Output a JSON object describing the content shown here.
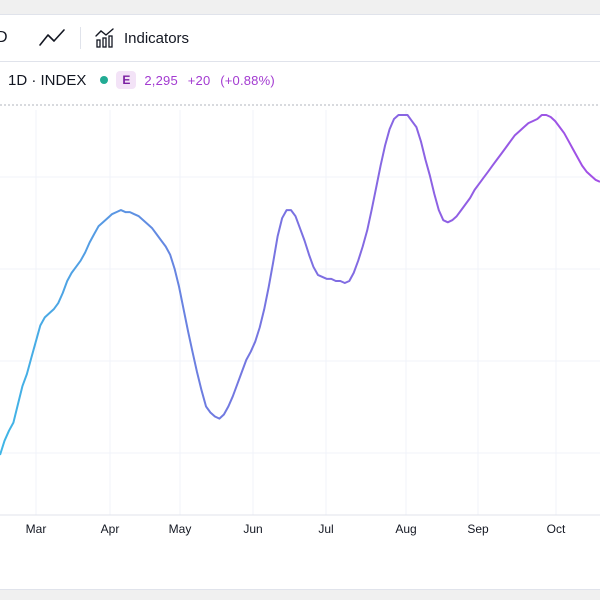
{
  "toolbar": {
    "partial_label": "D",
    "indicators_label": "Indicators",
    "icons": [
      "line-chart-icon",
      "indicators-icon"
    ]
  },
  "legend": {
    "symbol": "1D · INDEX",
    "market_status": "E",
    "value": "2,295",
    "change": "+20",
    "change_pct": "(+0.88%)",
    "colors": {
      "dot": "#22ab94",
      "value": "#a33bd1"
    }
  },
  "chart_data": {
    "type": "line",
    "title": "",
    "xlabel": "",
    "ylabel": "",
    "x_ticks": [
      "Mar",
      "Apr",
      "May",
      "Jun",
      "Jul",
      "Aug",
      "Sep",
      "Oct"
    ],
    "grid": true,
    "line_gradient": [
      "#3fb6e6",
      "#6f7be0",
      "#a34fe6"
    ],
    "series": [
      {
        "values": [
          380,
          387,
          392,
          396,
          405,
          414,
          420,
          428,
          436,
          444,
          448,
          450,
          452,
          455,
          460,
          466,
          470,
          473,
          476,
          480,
          485,
          489,
          493,
          495,
          497,
          499,
          500,
          501,
          500,
          500,
          499,
          498,
          496,
          494,
          492,
          489,
          486,
          483,
          479,
          472,
          463,
          452,
          441,
          431,
          421,
          412,
          404,
          401,
          399,
          398,
          400,
          404,
          409,
          415,
          421,
          427,
          431,
          436,
          443,
          452,
          463,
          475,
          488,
          497,
          501,
          501,
          498,
          492,
          486,
          479,
          473,
          469,
          468,
          467,
          467,
          466,
          466,
          465,
          466,
          470,
          476,
          483,
          491,
          501,
          512,
          523,
          533,
          541,
          546,
          548,
          548,
          548,
          545,
          542,
          535,
          526,
          518,
          509,
          501,
          496,
          495,
          496,
          498,
          501,
          504,
          507,
          511,
          514,
          517,
          520,
          523,
          526,
          529,
          532,
          535,
          538,
          540,
          542,
          544,
          545,
          546,
          548,
          548,
          547,
          545,
          542,
          539,
          535,
          531,
          527,
          523,
          520,
          518,
          516,
          515
        ]
      }
    ]
  }
}
